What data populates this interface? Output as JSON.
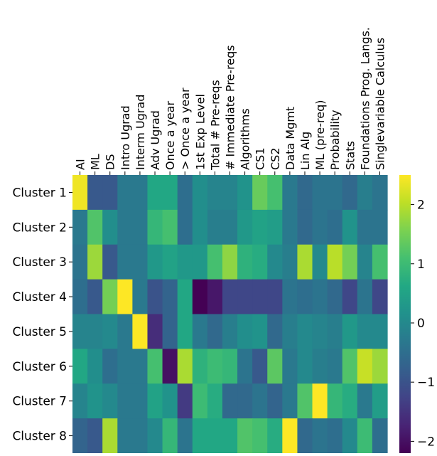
{
  "chart_data": {
    "type": "heatmap",
    "colormap": "viridis",
    "vmin": -2.2,
    "vmax": 2.5,
    "colorbar_ticks": [
      2,
      1,
      0,
      -1,
      -2
    ],
    "colorbar_tick_labels": [
      "2",
      "1",
      "0",
      "−1",
      "−2"
    ],
    "columns": [
      "AI",
      "ML",
      "DS",
      "Intro Ugrad",
      "Interm Ugrad",
      "Adv Ugrad",
      "Once a year",
      "> Once a year",
      "1st Exp Level",
      "Total # Pre-reqs",
      "# Immediate Pre-reqs",
      "Algorithms",
      "CS1",
      "CS2",
      "Data Mgmt",
      "Lin Alg",
      "ML (pre-req)",
      "Probability",
      "Stats",
      "Foundations Prog. Langs.",
      "Singlevariable Calculus"
    ],
    "rows": [
      "Cluster 1",
      "Cluster 2",
      "Cluster 3",
      "Cluster 4",
      "Cluster 5",
      "Cluster 6",
      "Cluster 7",
      "Cluster 8"
    ],
    "values": [
      [
        2.4,
        -0.9,
        -0.9,
        -0.3,
        -0.3,
        0.6,
        0.6,
        -0.5,
        0.1,
        -0.1,
        -0.1,
        0.2,
        1.4,
        1.1,
        -0.3,
        -0.6,
        -0.4,
        -0.4,
        -0.6,
        -0.2,
        -0.4
      ],
      [
        -0.3,
        1.2,
        0.1,
        -0.3,
        -0.3,
        0.9,
        1.1,
        -0.5,
        0.1,
        -0.2,
        -0.2,
        0.3,
        0.5,
        0.4,
        -0.3,
        -0.6,
        -0.4,
        -0.5,
        0.2,
        -0.4,
        -0.4
      ],
      [
        -0.4,
        1.8,
        -0.9,
        -0.3,
        -0.3,
        0.3,
        0.5,
        0.3,
        0.3,
        1.1,
        1.7,
        0.8,
        0.7,
        0.0,
        -0.2,
        1.9,
        0.0,
        2.0,
        1.5,
        -0.1,
        1.1
      ],
      [
        -0.5,
        -0.9,
        1.5,
        2.5,
        -0.3,
        -1.0,
        -0.7,
        0.6,
        -2.2,
        -1.9,
        -1.2,
        -1.2,
        -1.2,
        -1.2,
        -0.4,
        -0.5,
        -0.4,
        -0.6,
        -1.2,
        -0.4,
        -1.2
      ],
      [
        -0.1,
        -0.1,
        0.0,
        -0.3,
        2.5,
        -1.6,
        -0.7,
        0.6,
        -0.3,
        -0.6,
        -0.2,
        0.1,
        0.2,
        -0.6,
        -0.2,
        0.0,
        -0.1,
        -0.2,
        0.3,
        0.0,
        0.0
      ],
      [
        0.6,
        0.1,
        -0.5,
        -0.3,
        -0.3,
        1.1,
        -2.0,
        1.9,
        0.8,
        1.0,
        0.9,
        -0.4,
        -0.9,
        1.3,
        -0.3,
        0.0,
        -0.2,
        -0.3,
        1.2,
        2.1,
        1.8
      ],
      [
        -0.1,
        0.2,
        0.0,
        -0.3,
        -0.3,
        0.5,
        0.2,
        -1.4,
        1.0,
        0.7,
        -0.6,
        -0.6,
        -0.4,
        -0.7,
        -0.3,
        1.2,
        2.5,
        0.9,
        0.7,
        -0.3,
        0.4
      ],
      [
        -0.7,
        -0.9,
        1.9,
        -0.3,
        -0.3,
        0.0,
        0.9,
        -0.4,
        0.6,
        0.6,
        0.6,
        1.2,
        1.1,
        0.7,
        2.5,
        -0.6,
        -0.4,
        -0.5,
        0.0,
        1.0,
        -0.5
      ]
    ]
  }
}
